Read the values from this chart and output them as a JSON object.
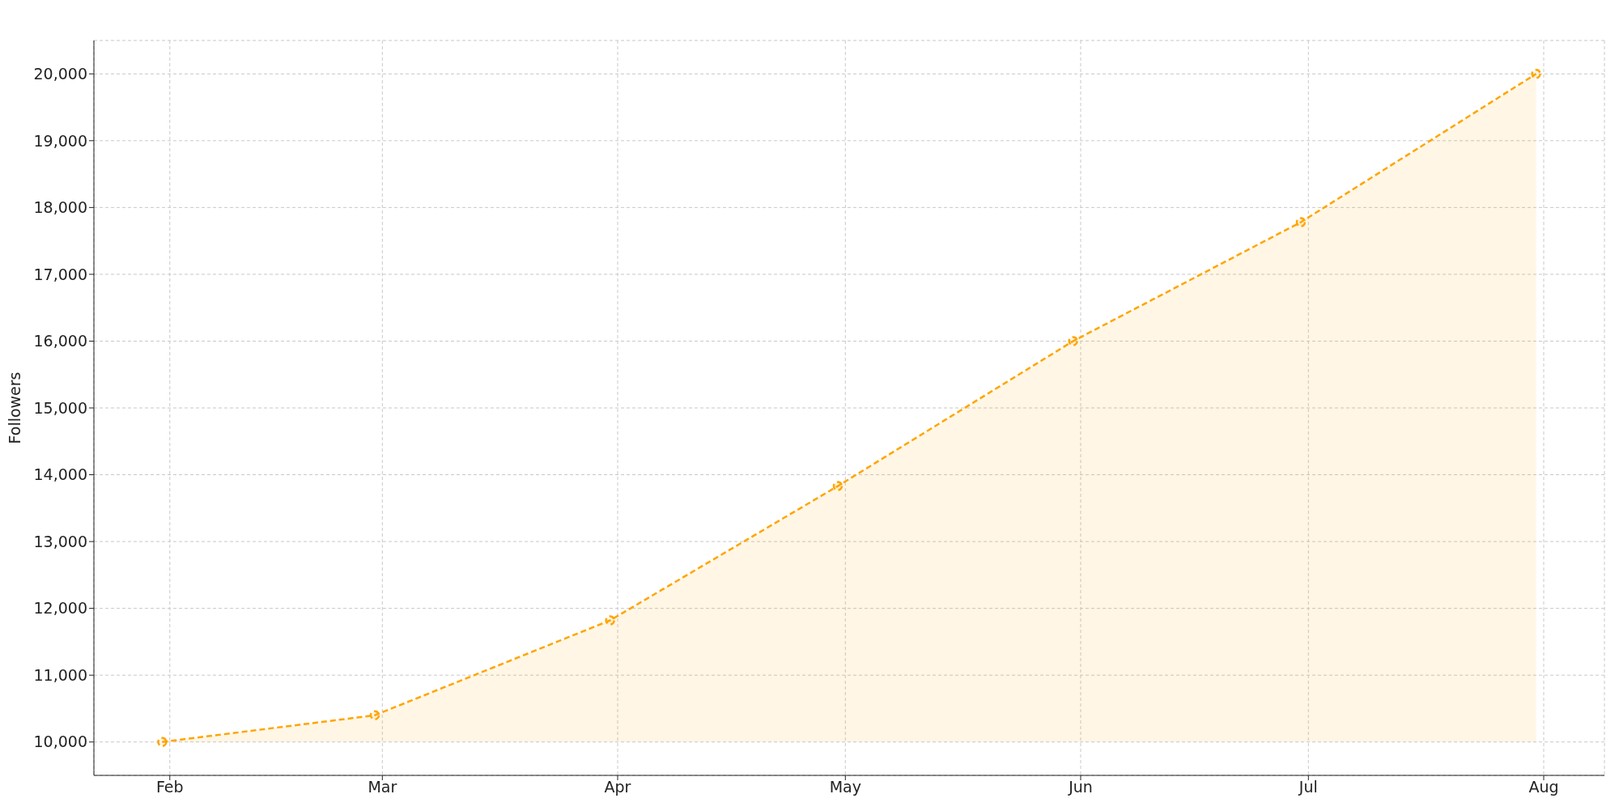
{
  "chart_data": {
    "type": "area",
    "ylabel": "Followers",
    "x": [
      "--01-31",
      "--02-28",
      "--03-31",
      "--04-30",
      "--05-31",
      "--06-30",
      "--07-31"
    ],
    "series": [
      {
        "color": "#ffa500",
        "values": [
          10000,
          10400,
          11820,
          13830,
          16000,
          17780,
          20000
        ]
      }
    ],
    "xlim": [
      "--01-22",
      "--08-09"
    ],
    "xticks": [
      {
        "value": "--02-01",
        "label": "Feb"
      },
      {
        "value": "--03-01",
        "label": "Mar"
      },
      {
        "value": "--04-01",
        "label": "Apr"
      },
      {
        "value": "--05-01",
        "label": "May"
      },
      {
        "value": "--06-01",
        "label": "Jun"
      },
      {
        "value": "--07-01",
        "label": "Jul"
      },
      {
        "value": "--08-01",
        "label": "Aug"
      }
    ],
    "ylim": [
      9500,
      20500
    ],
    "yticks": [
      {
        "value": 10000,
        "label": "10,000"
      },
      {
        "value": 11000,
        "label": "11,000"
      },
      {
        "value": 12000,
        "label": "12,000"
      },
      {
        "value": 13000,
        "label": "13,000"
      },
      {
        "value": 14000,
        "label": "14,000"
      },
      {
        "value": 15000,
        "label": "15,000"
      },
      {
        "value": 16000,
        "label": "16,000"
      },
      {
        "value": 17000,
        "label": "17,000"
      },
      {
        "value": 18000,
        "label": "18,000"
      },
      {
        "value": 19000,
        "label": "19,000"
      },
      {
        "value": 20000,
        "label": "20,000"
      }
    ],
    "grid": true,
    "marker": "circle",
    "line_style": "dashed",
    "legend": false
  }
}
